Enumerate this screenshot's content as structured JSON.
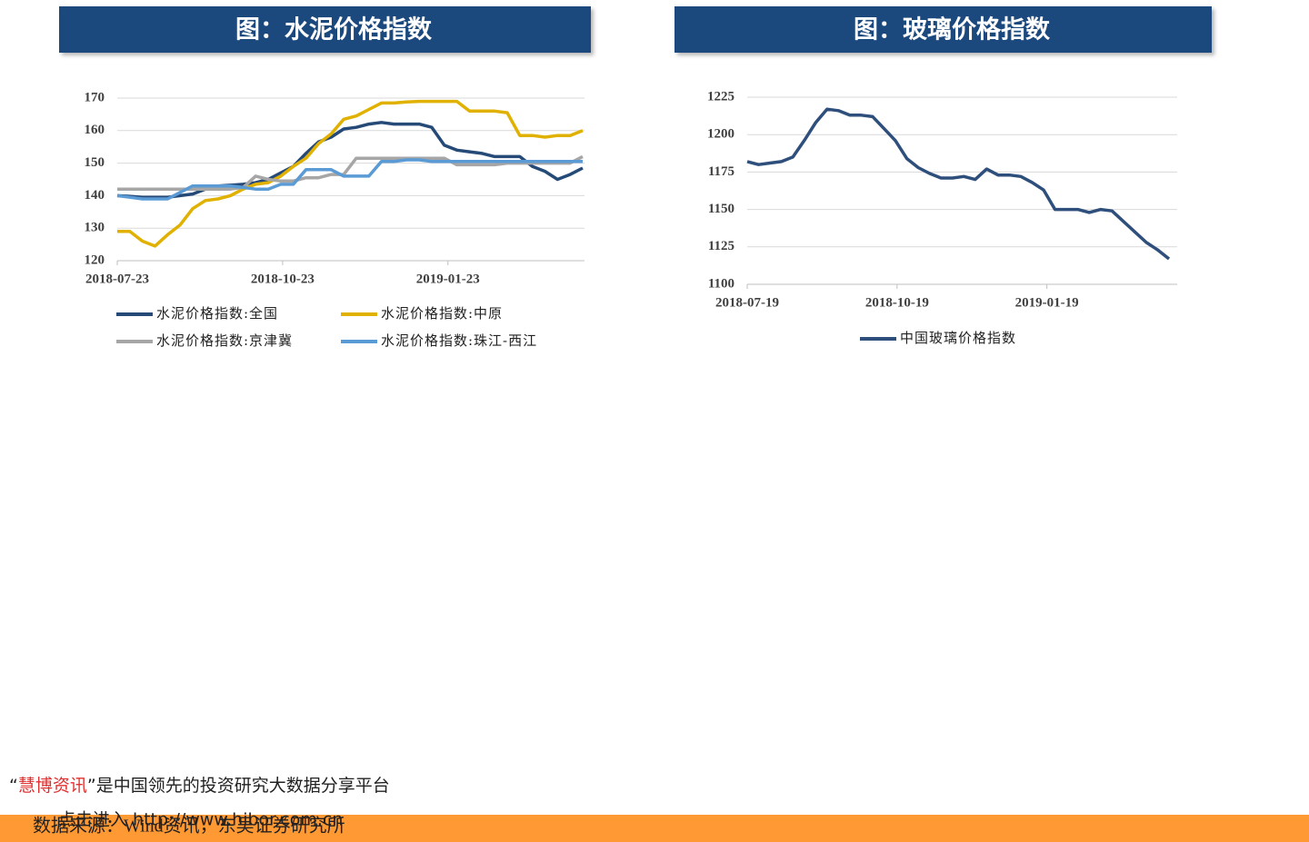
{
  "chart_data": [
    {
      "type": "line",
      "title": "图：水泥价格指数",
      "x": [
        "2018-07-23",
        "2018-07-30",
        "2018-08-06",
        "2018-08-13",
        "2018-08-20",
        "2018-08-27",
        "2018-09-03",
        "2018-09-10",
        "2018-09-17",
        "2018-09-24",
        "2018-10-01",
        "2018-10-08",
        "2018-10-15",
        "2018-10-22",
        "2018-10-29",
        "2018-11-05",
        "2018-11-12",
        "2018-11-19",
        "2018-11-26",
        "2018-12-03",
        "2018-12-10",
        "2018-12-17",
        "2018-12-24",
        "2018-12-31",
        "2019-01-07",
        "2019-01-14",
        "2019-01-21",
        "2019-01-28",
        "2019-02-04",
        "2019-02-11",
        "2019-02-18",
        "2019-02-25",
        "2019-03-04",
        "2019-03-11",
        "2019-03-18",
        "2019-03-25",
        "2019-04-01",
        "2019-04-08"
      ],
      "series": [
        {
          "name": "水泥价格指数:全国",
          "color": "#264a78",
          "values": [
            140,
            139.8,
            139.5,
            139.5,
            139.5,
            140,
            140.5,
            142,
            143,
            143.2,
            143.5,
            144,
            145,
            147,
            149,
            153,
            156.5,
            158,
            160.5,
            161,
            162,
            162.5,
            162,
            162,
            162,
            161,
            155.5,
            154,
            153.5,
            153,
            152,
            152,
            152,
            149,
            147.5,
            145,
            146.5,
            148.5
          ]
        },
        {
          "name": "水泥价格指数:中原",
          "color": "#e0b100",
          "values": [
            129,
            129,
            126,
            124.5,
            128,
            131,
            136,
            138.5,
            139,
            140,
            142,
            143.5,
            144,
            146,
            149,
            151.5,
            156,
            159,
            163.5,
            164.5,
            166.5,
            168.5,
            168.5,
            168.8,
            169,
            169,
            169,
            169,
            166,
            166,
            166,
            165.5,
            158.5,
            158.5,
            158,
            158.5,
            158.5,
            160
          ]
        },
        {
          "name": "水泥价格指数:京津冀",
          "color": "#a6a6a6",
          "values": [
            142,
            142,
            142,
            142,
            142,
            142,
            142,
            142,
            142,
            142,
            142.5,
            146,
            145,
            144.5,
            144.5,
            145.5,
            145.5,
            146.5,
            146.5,
            151.5,
            151.5,
            151.5,
            151.5,
            151.5,
            151.5,
            151.5,
            151.5,
            149.5,
            149.5,
            149.5,
            149.5,
            150,
            150,
            150,
            150,
            150,
            150,
            152
          ]
        },
        {
          "name": "水泥价格指数:珠江-西江",
          "color": "#5b9bd5",
          "values": [
            140,
            139.5,
            139,
            139,
            139,
            141,
            143,
            143,
            143,
            143,
            142.5,
            142,
            142,
            143.5,
            143.5,
            148,
            148,
            148,
            146,
            146,
            146,
            150.5,
            150.5,
            151,
            151,
            150.5,
            150.5,
            150.5,
            150.5,
            150.5,
            150.5,
            150.5,
            150.5,
            150.5,
            150.5,
            150.5,
            150.5,
            150.5
          ]
        }
      ],
      "xlim": [
        "2018-07-23",
        "2019-04-09"
      ],
      "xticks": [
        "2018-07-23",
        "2018-10-23",
        "2019-01-23"
      ],
      "ylim": [
        120,
        170
      ],
      "yticks": [
        120,
        130,
        140,
        150,
        160,
        170
      ],
      "grid": true,
      "legend": "bottom"
    },
    {
      "type": "line",
      "title": "图：玻璃价格指数",
      "x": [
        "2018-07-19",
        "2018-07-26",
        "2018-08-02",
        "2018-08-09",
        "2018-08-16",
        "2018-08-23",
        "2018-08-30",
        "2018-09-06",
        "2018-09-13",
        "2018-09-20",
        "2018-09-27",
        "2018-10-04",
        "2018-10-11",
        "2018-10-18",
        "2018-10-25",
        "2018-11-01",
        "2018-11-08",
        "2018-11-15",
        "2018-11-22",
        "2018-11-29",
        "2018-12-06",
        "2018-12-13",
        "2018-12-20",
        "2018-12-27",
        "2019-01-03",
        "2019-01-10",
        "2019-01-17",
        "2019-01-24",
        "2019-01-31",
        "2019-02-07",
        "2019-02-14",
        "2019-02-21",
        "2019-02-28",
        "2019-03-07",
        "2019-03-14",
        "2019-03-21",
        "2019-03-28",
        "2019-04-04"
      ],
      "series": [
        {
          "name": "中国玻璃价格指数",
          "color": "#2e4f7c",
          "values": [
            1182,
            1180,
            1181,
            1182,
            1185,
            1196,
            1208,
            1217,
            1216,
            1213,
            1213,
            1212,
            1204,
            1196,
            1184,
            1178,
            1174,
            1171,
            1171,
            1172,
            1170,
            1177,
            1173,
            1173,
            1172,
            1168,
            1163,
            1150,
            1150,
            1150,
            1148,
            1150,
            1149,
            1142,
            1135,
            1128,
            1123,
            1117
          ]
        }
      ],
      "xlim": [
        "2018-07-19",
        "2019-04-09"
      ],
      "xticks": [
        "2018-07-19",
        "2018-10-19",
        "2019-01-19"
      ],
      "ylim": [
        1100,
        1225
      ],
      "yticks": [
        1100,
        1125,
        1150,
        1175,
        1200,
        1225
      ],
      "grid": true,
      "legend": "bottom"
    }
  ],
  "watermark": {
    "brand": "慧博资讯",
    "slogan": "是中国领先的投资研究大数据分享平台",
    "link": "点击进入 http://www.hibor.com.cn"
  },
  "source": "数据来源：Wind资讯，东吴证券研究所"
}
